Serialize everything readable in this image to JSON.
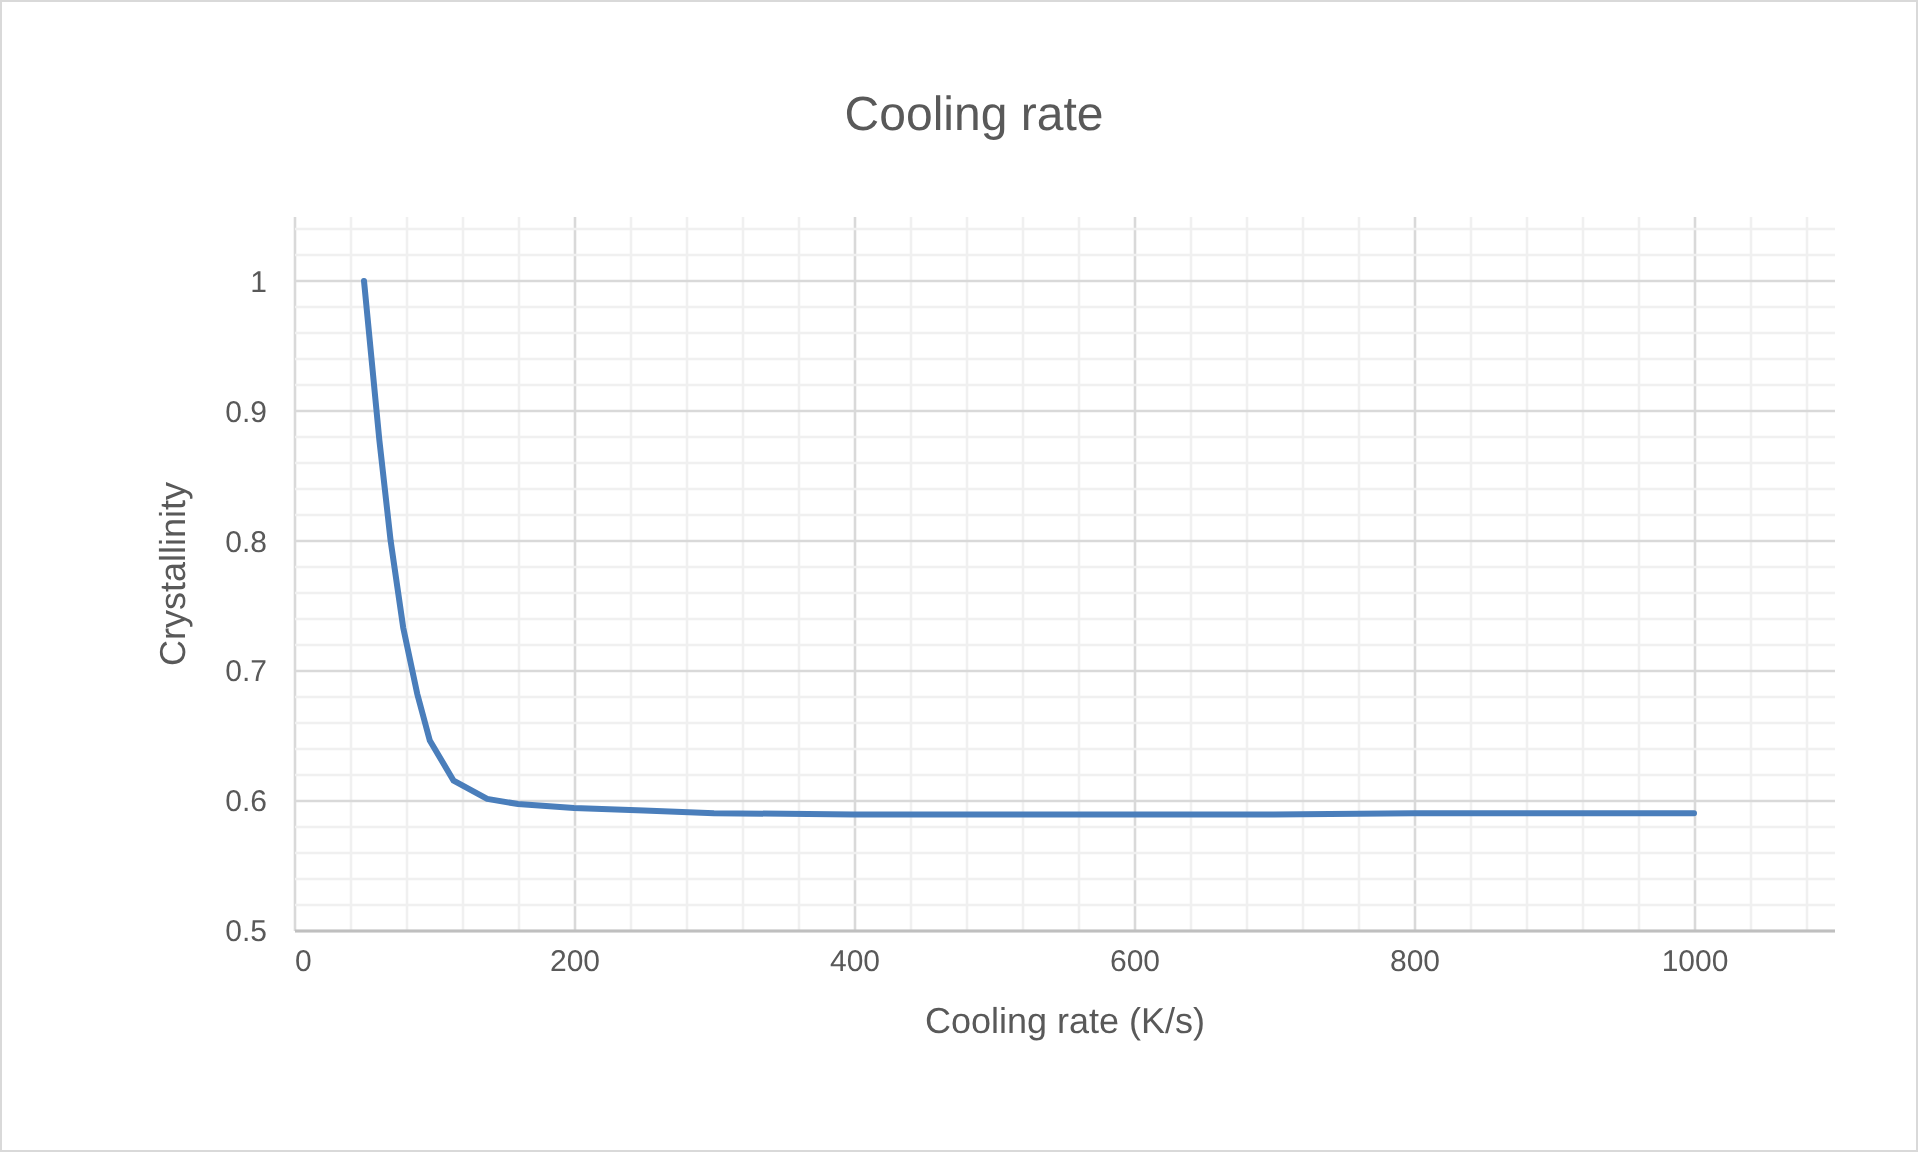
{
  "chart_data": {
    "type": "line",
    "title": "Cooling rate",
    "xlabel": "Cooling rate (K/s)",
    "ylabel": "Crystallinity",
    "x": [
      50,
      61,
      69,
      78,
      88,
      97,
      114,
      138,
      160,
      200,
      250,
      300,
      400,
      500,
      600,
      700,
      800,
      900,
      1000
    ],
    "series": [
      {
        "color": "#4a7ebb",
        "values": [
          1.0,
          0.877,
          0.8,
          0.733,
          0.682,
          0.646,
          0.615,
          0.601,
          0.597,
          0.594,
          0.592,
          0.59,
          0.589,
          0.589,
          0.589,
          0.589,
          0.59,
          0.59,
          0.59
        ]
      }
    ],
    "xlim": [
      0,
      1100
    ],
    "xticks": [
      0,
      {
        "value": 40,
        "label": null
      },
      {
        "value": 80,
        "label": null
      },
      {
        "value": 120,
        "label": null
      },
      {
        "value": 160,
        "label": null
      },
      200,
      {
        "value": 240,
        "label": null
      },
      {
        "value": 280,
        "label": null
      },
      {
        "value": 320,
        "label": null
      },
      {
        "value": 360,
        "label": null
      },
      400,
      {
        "value": 440,
        "label": null
      },
      {
        "value": 480,
        "label": null
      },
      {
        "value": 520,
        "label": null
      },
      {
        "value": 560,
        "label": null
      },
      600,
      {
        "value": 640,
        "label": null
      },
      {
        "value": 680,
        "label": null
      },
      {
        "value": 720,
        "label": null
      },
      {
        "value": 760,
        "label": null
      },
      800,
      {
        "value": 840,
        "label": null
      },
      {
        "value": 880,
        "label": null
      },
      {
        "value": 920,
        "label": null
      },
      {
        "value": 960,
        "label": null
      },
      1000,
      {
        "value": 1040,
        "label": null
      },
      {
        "value": 1080,
        "label": null
      }
    ],
    "ylim": [
      0.5,
      1.05
    ],
    "yticks": [
      0.5,
      {
        "value": 0.52,
        "label": null
      },
      {
        "value": 0.54,
        "label": null
      },
      {
        "value": 0.56,
        "label": null
      },
      {
        "value": 0.58,
        "label": null
      },
      0.6,
      {
        "value": 0.62,
        "label": null
      },
      {
        "value": 0.64,
        "label": null
      },
      {
        "value": 0.66,
        "label": null
      },
      {
        "value": 0.68,
        "label": null
      },
      0.7,
      {
        "value": 0.72,
        "label": null
      },
      {
        "value": 0.74,
        "label": null
      },
      {
        "value": 0.76,
        "label": null
      },
      {
        "value": 0.78,
        "label": null
      },
      0.8,
      {
        "value": 0.82,
        "label": null
      },
      {
        "value": 0.84,
        "label": null
      },
      {
        "value": 0.86,
        "label": null
      },
      {
        "value": 0.88,
        "label": null
      },
      0.9,
      {
        "value": 0.92,
        "label": null
      },
      {
        "value": 0.94,
        "label": null
      },
      {
        "value": 0.96,
        "label": null
      },
      {
        "value": 0.98,
        "label": null
      },
      1,
      {
        "value": 1.02,
        "label": null
      },
      {
        "value": 1.04,
        "label": null
      }
    ],
    "grid": true,
    "line_style": "solid",
    "marker": "none"
  }
}
